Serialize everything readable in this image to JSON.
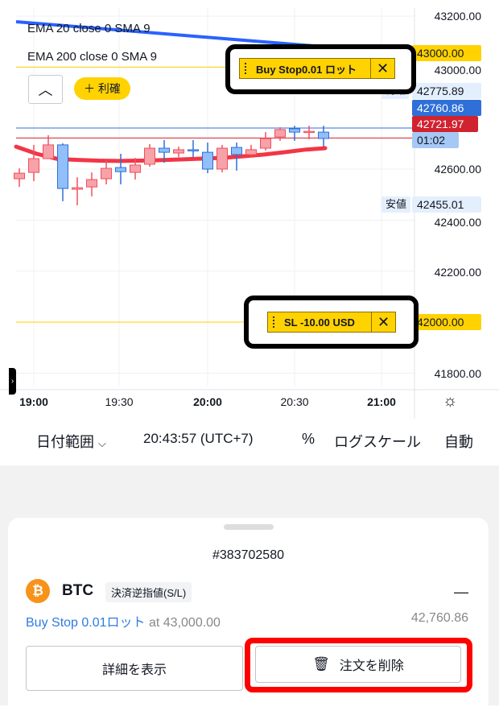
{
  "chart": {
    "indicators": [
      "EMA 20 close 0 SMA 9",
      "EMA 200 close 0 SMA 9"
    ],
    "price_axis": [
      "43200.00",
      "43000.00",
      "42600.00",
      "42400.00",
      "42200.00",
      "42000.00",
      "41800.00"
    ],
    "time_axis": [
      "19:00",
      "19:30",
      "20:00",
      "20:30",
      "21:00"
    ],
    "tags": {
      "buy_stop_price": "43000.00",
      "take_profit_label": "利確",
      "take_profit_price": "42775.89",
      "current_price": "42760.86",
      "bid_price": "42721.97",
      "countdown": "01:02",
      "low_label": "安値",
      "low_price": "42455.01",
      "sl_price": "42000.00"
    },
    "take_profit_button": "利確",
    "buy_stop_chip": "Buy Stop0.01 ロット",
    "sl_chip": "SL -10.00 USD",
    "colors": {
      "up": "#f7a1a8",
      "down": "#90bff9",
      "ema20": "#f23645",
      "ema200": "#2962ff",
      "order": "#ffd200"
    },
    "candles": [
      {
        "t": "18:55",
        "o": 42562,
        "h": 42603,
        "l": 42530,
        "c": 42584
      },
      {
        "t": "19:00",
        "o": 42587,
        "h": 42695,
        "l": 42553,
        "c": 42641
      },
      {
        "t": "19:05",
        "o": 42641,
        "h": 42733,
        "l": 42641,
        "c": 42695
      },
      {
        "t": "19:10",
        "o": 42695,
        "h": 42701,
        "l": 42474,
        "c": 42524
      },
      {
        "t": "19:15",
        "o": 42521,
        "h": 42568,
        "l": 42458,
        "c": 42527
      },
      {
        "t": "19:20",
        "o": 42530,
        "h": 42587,
        "l": 42493,
        "c": 42559
      },
      {
        "t": "19:25",
        "o": 42562,
        "h": 42638,
        "l": 42540,
        "c": 42603
      },
      {
        "t": "19:30",
        "o": 42606,
        "h": 42660,
        "l": 42540,
        "c": 42590
      },
      {
        "t": "19:35",
        "o": 42587,
        "h": 42644,
        "l": 42559,
        "c": 42616
      },
      {
        "t": "19:40",
        "o": 42619,
        "h": 42698,
        "l": 42609,
        "c": 42682
      },
      {
        "t": "19:45",
        "o": 42682,
        "h": 42714,
        "l": 42625,
        "c": 42666
      },
      {
        "t": "19:50",
        "o": 42663,
        "h": 42688,
        "l": 42647,
        "c": 42676
      },
      {
        "t": "19:55",
        "o": 42676,
        "h": 42714,
        "l": 42647,
        "c": 42673
      },
      {
        "t": "20:00",
        "o": 42666,
        "h": 42704,
        "l": 42584,
        "c": 42600
      },
      {
        "t": "20:05",
        "o": 42600,
        "h": 42695,
        "l": 42587,
        "c": 42682
      },
      {
        "t": "20:10",
        "o": 42685,
        "h": 42704,
        "l": 42594,
        "c": 42657
      },
      {
        "t": "20:15",
        "o": 42657,
        "h": 42695,
        "l": 42647,
        "c": 42676
      },
      {
        "t": "20:20",
        "o": 42682,
        "h": 42745,
        "l": 42673,
        "c": 42720
      },
      {
        "t": "20:25",
        "o": 42726,
        "h": 42764,
        "l": 42711,
        "c": 42755
      },
      {
        "t": "20:30",
        "o": 42758,
        "h": 42770,
        "l": 42711,
        "c": 42745
      },
      {
        "t": "20:35",
        "o": 42745,
        "h": 42770,
        "l": 42717,
        "c": 42748
      },
      {
        "t": "20:40",
        "o": 42745,
        "h": 42770,
        "l": 42688,
        "c": 42720
      }
    ],
    "ema20": [
      42688,
      42660,
      42640,
      42636,
      42633,
      42632,
      42633,
      42635,
      42638,
      42641,
      42644,
      42650,
      42657,
      42666,
      42676,
      42682
    ],
    "ema200": [
      43178,
      43083
    ]
  },
  "toolbar": {
    "date_range": "日付範囲",
    "time": "20:43:57 (UTC+7)",
    "percent": "%",
    "log_scale": "ログスケール",
    "auto": "自動"
  },
  "sheet": {
    "order_id": "#383702580",
    "symbol": "BTC",
    "order_type_badge": "決済逆指値(S/L)",
    "pnl": "—",
    "order_desc": "Buy Stop 0.01ロット",
    "at_price": "at 43,000.00",
    "current_price": "42,760.86",
    "details_button": "詳細を表示",
    "delete_button": "注文を削除"
  }
}
